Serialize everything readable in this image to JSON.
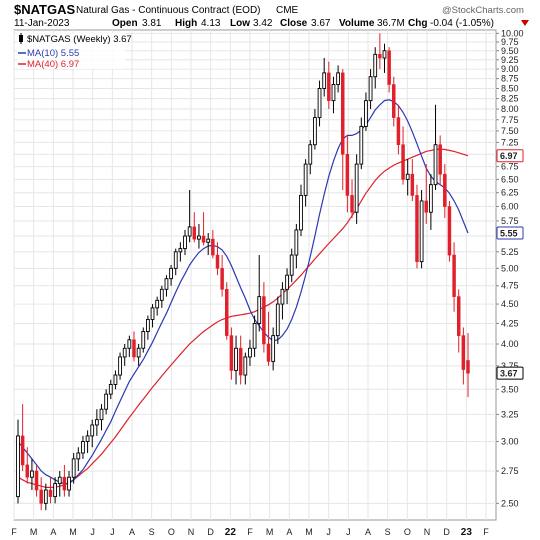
{
  "header": {
    "symbol": "$NATGAS",
    "description": "Natural Gas - Continuous Contract (EOD)",
    "exchange": "CME",
    "date": "11-Jan-2023",
    "open_label": "Open",
    "open_value": "3.81",
    "high_label": "High",
    "high_value": "4.13",
    "low_label": "Low",
    "low_value": "3.42",
    "close_label": "Close",
    "close_value": "3.67",
    "volume_label": "Volume",
    "volume_value": "36.7M",
    "chg_label": "Chg",
    "chg_value": "-0.04 (-1.05%)",
    "watermark": "@StockCharts.com"
  },
  "legend": {
    "price_label": "$NATGAS (Weekly) 3.67",
    "ma10_label": "MA(10) 5.55",
    "ma40_label": "MA(40) 6.97"
  },
  "colors": {
    "up": "#000000",
    "down": "#e0202b",
    "ma10": "#2b3ab0",
    "ma40": "#e0202b",
    "grid": "#e6e6e6"
  },
  "chart_data": {
    "type": "candlestick",
    "title": "$NATGAS",
    "x_tick_labels": [
      "F",
      "M",
      "A",
      "M",
      "J",
      "J",
      "A",
      "S",
      "O",
      "N",
      "D",
      "22",
      "F",
      "M",
      "A",
      "M",
      "J",
      "J",
      "A",
      "S",
      "O",
      "N",
      "D",
      "23",
      "F"
    ],
    "y_tick_labels": [
      "2.50",
      "2.75",
      "3.00",
      "3.25",
      "3.50",
      "3.75",
      "4.00",
      "4.25",
      "4.50",
      "4.75",
      "5.00",
      "5.25",
      "5.50",
      "5.75",
      "6.00",
      "6.25",
      "6.50",
      "6.75",
      "7.00",
      "7.25",
      "7.50",
      "7.75",
      "8.00",
      "8.25",
      "8.50",
      "8.75",
      "9.00",
      "9.25",
      "9.50",
      "9.75",
      "10.00"
    ],
    "y_scale": "log",
    "ylim": [
      2.38,
      10.1
    ],
    "grid": true,
    "axis_side": "right",
    "last_price_tag": "3.67",
    "ma10_tag": "5.55",
    "ma40_tag": "6.97",
    "series": [
      {
        "name": "$NATGAS (Weekly)",
        "type": "candlestick",
        "ohlc": [
          [
            2.55,
            3.2,
            2.5,
            3.05
          ],
          [
            3.05,
            3.35,
            2.75,
            2.8
          ],
          [
            2.8,
            2.95,
            2.65,
            2.7
          ],
          [
            2.7,
            2.85,
            2.6,
            2.75
          ],
          [
            2.75,
            2.8,
            2.55,
            2.6
          ],
          [
            2.6,
            2.7,
            2.45,
            2.5
          ],
          [
            2.5,
            2.65,
            2.45,
            2.6
          ],
          [
            2.6,
            2.7,
            2.5,
            2.55
          ],
          [
            2.55,
            2.7,
            2.5,
            2.65
          ],
          [
            2.65,
            2.75,
            2.55,
            2.7
          ],
          [
            2.7,
            2.8,
            2.55,
            2.6
          ],
          [
            2.6,
            2.75,
            2.55,
            2.7
          ],
          [
            2.7,
            2.9,
            2.65,
            2.85
          ],
          [
            2.85,
            2.95,
            2.75,
            2.9
          ],
          [
            2.9,
            3.05,
            2.85,
            3.0
          ],
          [
            3.0,
            3.1,
            2.9,
            3.05
          ],
          [
            3.05,
            3.2,
            2.95,
            3.15
          ],
          [
            3.15,
            3.3,
            3.05,
            3.2
          ],
          [
            3.2,
            3.35,
            3.1,
            3.3
          ],
          [
            3.3,
            3.5,
            3.25,
            3.45
          ],
          [
            3.45,
            3.6,
            3.4,
            3.55
          ],
          [
            3.55,
            3.7,
            3.5,
            3.65
          ],
          [
            3.65,
            3.9,
            3.6,
            3.85
          ],
          [
            3.85,
            4.0,
            3.75,
            3.95
          ],
          [
            3.95,
            4.1,
            3.85,
            4.05
          ],
          [
            4.05,
            4.15,
            3.8,
            3.85
          ],
          [
            3.85,
            4.0,
            3.75,
            3.95
          ],
          [
            3.95,
            4.2,
            3.9,
            4.15
          ],
          [
            4.15,
            4.35,
            4.05,
            4.3
          ],
          [
            4.3,
            4.5,
            4.2,
            4.45
          ],
          [
            4.45,
            4.6,
            4.35,
            4.55
          ],
          [
            4.55,
            4.75,
            4.45,
            4.7
          ],
          [
            4.7,
            4.9,
            4.6,
            4.85
          ],
          [
            4.85,
            5.05,
            4.75,
            5.0
          ],
          [
            5.0,
            5.3,
            4.9,
            5.25
          ],
          [
            5.25,
            5.4,
            5.1,
            5.3
          ],
          [
            5.3,
            5.6,
            5.2,
            5.5
          ],
          [
            5.5,
            6.3,
            5.4,
            5.65
          ],
          [
            5.65,
            5.9,
            5.4,
            5.45
          ],
          [
            5.45,
            5.7,
            5.3,
            5.5
          ],
          [
            5.5,
            5.9,
            5.35,
            5.4
          ],
          [
            5.4,
            5.55,
            5.2,
            5.45
          ],
          [
            5.45,
            5.6,
            5.15,
            5.2
          ],
          [
            5.2,
            5.4,
            4.9,
            5.0
          ],
          [
            5.0,
            5.2,
            4.6,
            4.7
          ],
          [
            4.7,
            4.8,
            4.05,
            4.1
          ],
          [
            4.1,
            4.2,
            3.6,
            3.7
          ],
          [
            3.7,
            4.1,
            3.55,
            3.95
          ],
          [
            3.95,
            4.1,
            3.55,
            3.65
          ],
          [
            3.65,
            3.9,
            3.55,
            3.85
          ],
          [
            3.85,
            4.05,
            3.75,
            3.95
          ],
          [
            3.95,
            4.35,
            3.85,
            4.25
          ],
          [
            4.25,
            5.2,
            4.15,
            4.6
          ],
          [
            4.6,
            4.8,
            3.9,
            4.0
          ],
          [
            4.0,
            4.4,
            3.75,
            3.8
          ],
          [
            3.8,
            4.2,
            3.7,
            4.1
          ],
          [
            4.1,
            4.6,
            4.0,
            4.5
          ],
          [
            4.5,
            4.8,
            4.3,
            4.7
          ],
          [
            4.7,
            5.0,
            4.5,
            4.9
          ],
          [
            4.9,
            5.3,
            4.8,
            5.2
          ],
          [
            5.2,
            5.7,
            5.0,
            5.6
          ],
          [
            5.6,
            6.4,
            5.5,
            6.2
          ],
          [
            6.2,
            6.9,
            6.0,
            6.8
          ],
          [
            6.8,
            7.3,
            6.6,
            7.2
          ],
          [
            7.2,
            8.0,
            7.1,
            7.8
          ],
          [
            7.8,
            8.7,
            7.6,
            8.5
          ],
          [
            8.5,
            9.3,
            8.3,
            8.9
          ],
          [
            8.9,
            9.2,
            8.0,
            8.2
          ],
          [
            8.2,
            8.8,
            7.9,
            8.6
          ],
          [
            8.6,
            9.1,
            8.4,
            8.9
          ],
          [
            8.9,
            9.0,
            6.3,
            7.0
          ],
          [
            7.0,
            7.4,
            5.9,
            6.2
          ],
          [
            6.2,
            6.5,
            5.8,
            5.9
          ],
          [
            5.9,
            7.0,
            5.7,
            6.8
          ],
          [
            6.8,
            7.8,
            6.7,
            7.6
          ],
          [
            7.6,
            8.4,
            7.5,
            8.2
          ],
          [
            8.2,
            9.0,
            8.0,
            8.8
          ],
          [
            8.8,
            9.6,
            8.5,
            9.4
          ],
          [
            9.4,
            10.0,
            9.0,
            9.3
          ],
          [
            9.3,
            9.7,
            8.9,
            9.5
          ],
          [
            9.5,
            9.6,
            8.4,
            8.6
          ],
          [
            8.6,
            8.8,
            7.6,
            7.8
          ],
          [
            7.8,
            8.1,
            7.0,
            7.2
          ],
          [
            7.2,
            7.6,
            6.4,
            6.5
          ],
          [
            6.5,
            6.9,
            6.2,
            6.6
          ],
          [
            6.6,
            6.9,
            6.1,
            6.2
          ],
          [
            6.2,
            6.4,
            5.0,
            5.1
          ],
          [
            5.1,
            6.3,
            5.0,
            6.1
          ],
          [
            6.1,
            6.8,
            5.7,
            5.9
          ],
          [
            5.9,
            6.6,
            5.6,
            6.4
          ],
          [
            6.4,
            8.1,
            6.3,
            7.2
          ],
          [
            7.2,
            7.4,
            6.4,
            6.6
          ],
          [
            6.6,
            6.8,
            5.8,
            6.0
          ],
          [
            6.0,
            6.1,
            5.1,
            5.2
          ],
          [
            5.2,
            5.4,
            4.4,
            4.6
          ],
          [
            4.6,
            4.7,
            3.9,
            4.1
          ],
          [
            4.1,
            4.2,
            3.55,
            3.71
          ],
          [
            3.81,
            4.13,
            3.42,
            3.67
          ]
        ]
      },
      {
        "name": "MA(10)",
        "type": "line",
        "values": [
          3.0,
          2.95,
          2.9,
          2.85,
          2.8,
          2.75,
          2.72,
          2.7,
          2.68,
          2.66,
          2.65,
          2.65,
          2.68,
          2.72,
          2.76,
          2.82,
          2.88,
          2.95,
          3.02,
          3.1,
          3.18,
          3.28,
          3.38,
          3.48,
          3.58,
          3.66,
          3.74,
          3.82,
          3.92,
          4.02,
          4.14,
          4.26,
          4.38,
          4.52,
          4.66,
          4.8,
          4.92,
          5.05,
          5.15,
          5.24,
          5.3,
          5.34,
          5.35,
          5.33,
          5.28,
          5.18,
          5.04,
          4.88,
          4.72,
          4.58,
          4.42,
          4.3,
          4.22,
          4.14,
          4.08,
          4.04,
          4.05,
          4.1,
          4.18,
          4.3,
          4.46,
          4.66,
          4.9,
          5.18,
          5.5,
          5.86,
          6.22,
          6.56,
          6.86,
          7.12,
          7.32,
          7.4,
          7.4,
          7.44,
          7.52,
          7.64,
          7.8,
          7.98,
          8.1,
          8.2,
          8.22,
          8.18,
          8.08,
          7.92,
          7.72,
          7.48,
          7.22,
          6.96,
          6.72,
          6.56,
          6.46,
          6.4,
          6.34,
          6.24,
          6.1,
          5.94,
          5.74,
          5.55
        ]
      },
      {
        "name": "MA(40)",
        "type": "line",
        "values": [
          2.7,
          2.68,
          2.66,
          2.65,
          2.64,
          2.63,
          2.62,
          2.62,
          2.62,
          2.63,
          2.64,
          2.66,
          2.68,
          2.71,
          2.74,
          2.77,
          2.81,
          2.85,
          2.89,
          2.94,
          2.99,
          3.04,
          3.1,
          3.16,
          3.22,
          3.28,
          3.34,
          3.4,
          3.46,
          3.52,
          3.58,
          3.64,
          3.7,
          3.76,
          3.82,
          3.88,
          3.94,
          4.0,
          4.05,
          4.1,
          4.15,
          4.19,
          4.23,
          4.27,
          4.3,
          4.32,
          4.34,
          4.35,
          4.36,
          4.37,
          4.38,
          4.4,
          4.43,
          4.46,
          4.49,
          4.53,
          4.58,
          4.64,
          4.7,
          4.76,
          4.83,
          4.9,
          4.98,
          5.06,
          5.14,
          5.22,
          5.3,
          5.38,
          5.46,
          5.54,
          5.62,
          5.72,
          5.84,
          5.96,
          6.1,
          6.24,
          6.36,
          6.48,
          6.58,
          6.66,
          6.72,
          6.78,
          6.82,
          6.86,
          6.9,
          6.94,
          6.98,
          7.02,
          7.06,
          7.08,
          7.1,
          7.11,
          7.1,
          7.08,
          7.06,
          7.03,
          7.0,
          6.97
        ]
      }
    ]
  }
}
